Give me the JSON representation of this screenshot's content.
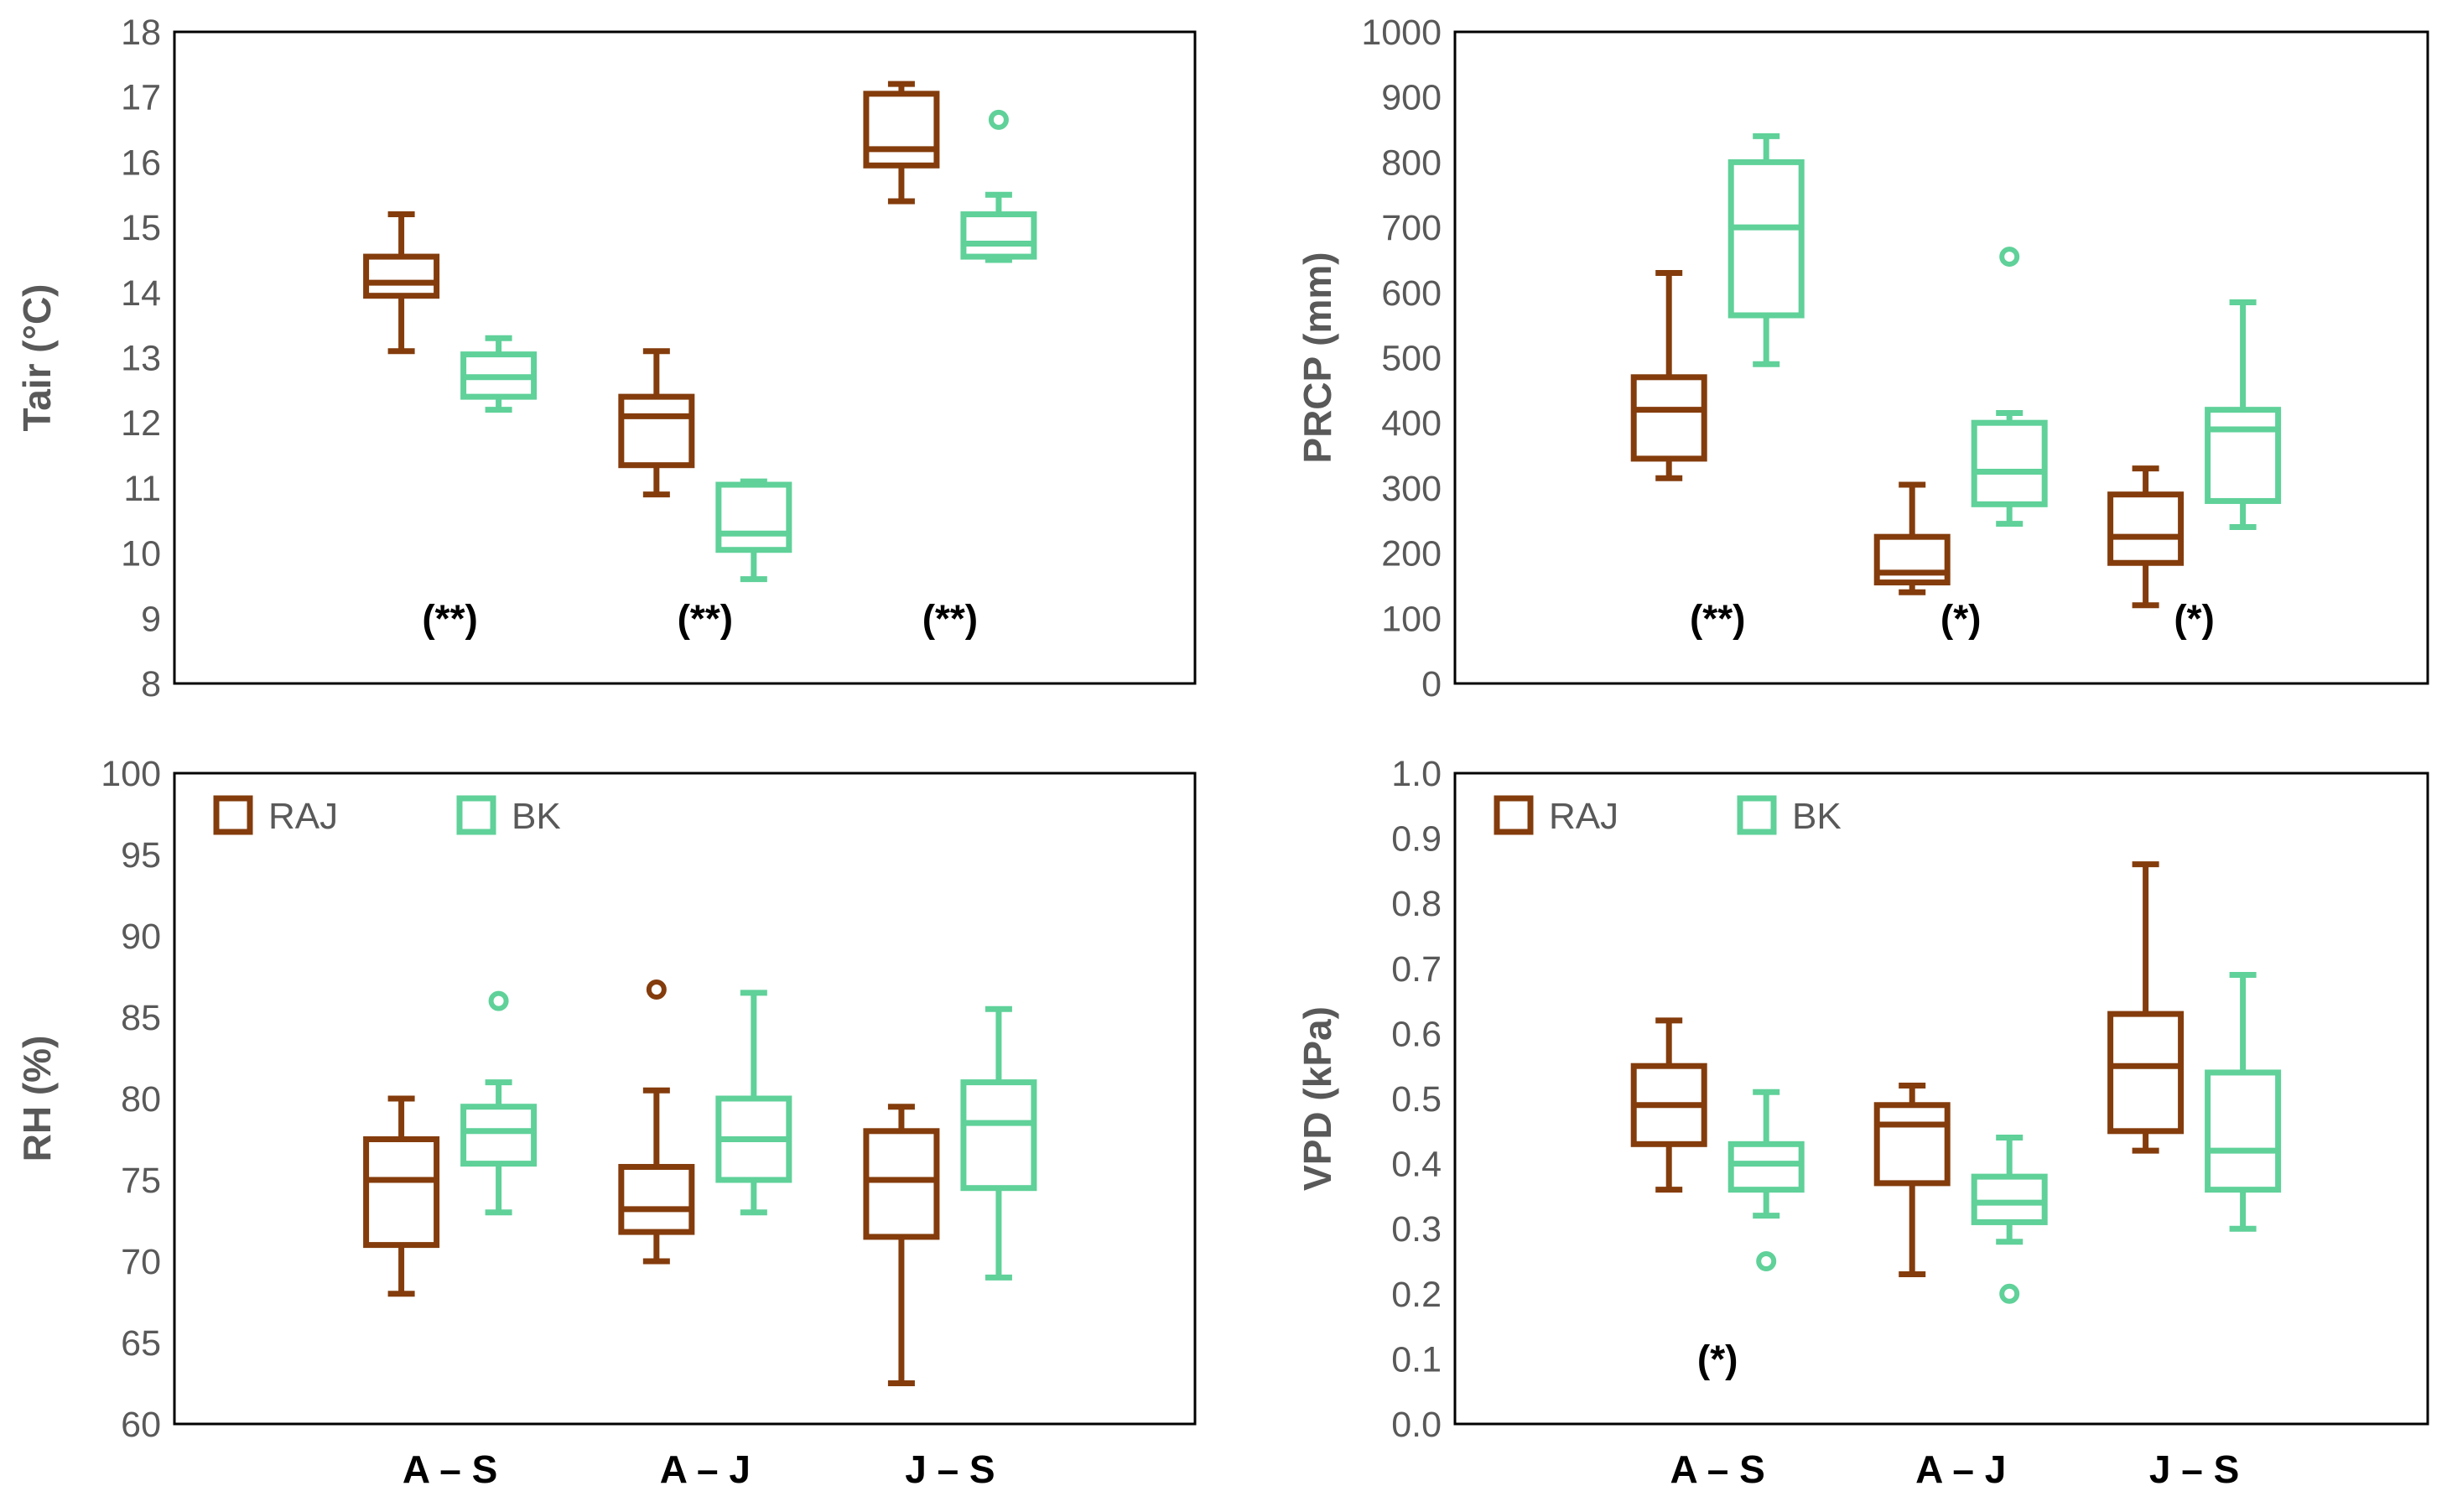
{
  "colors": {
    "RAJ": "#843c0c",
    "BK": "#5fd199",
    "axis": "#000000",
    "text": "#595959"
  },
  "x_categories": [
    "A – S",
    "A – J",
    "J – S"
  ],
  "legend": [
    "RAJ",
    "BK"
  ],
  "chart_data": [
    {
      "type": "boxplot",
      "id": "tair",
      "ylabel": "Tair (°C)",
      "ylim": [
        8,
        18
      ],
      "ytick_step": 1,
      "ytick_decimals": 0,
      "categories": [
        "A – S",
        "A – J",
        "J – S"
      ],
      "show_x_labels": false,
      "legend": false,
      "significance": [
        "(**)",
        "(**)",
        "(**)"
      ],
      "significance_at": 9.0,
      "series": [
        {
          "name": "RAJ",
          "boxes": [
            {
              "min": 13.1,
              "q1": 13.95,
              "median": 14.15,
              "q3": 14.55,
              "max": 15.2,
              "outliers": []
            },
            {
              "min": 10.9,
              "q1": 11.35,
              "median": 12.1,
              "q3": 12.4,
              "max": 13.1,
              "outliers": []
            },
            {
              "min": 15.4,
              "q1": 15.95,
              "median": 16.2,
              "q3": 17.05,
              "max": 17.2,
              "outliers": []
            }
          ]
        },
        {
          "name": "BK",
          "boxes": [
            {
              "min": 12.2,
              "q1": 12.4,
              "median": 12.7,
              "q3": 13.05,
              "max": 13.3,
              "outliers": []
            },
            {
              "min": 9.6,
              "q1": 10.05,
              "median": 10.3,
              "q3": 11.05,
              "max": 11.1,
              "outliers": []
            },
            {
              "min": 14.5,
              "q1": 14.55,
              "median": 14.75,
              "q3": 15.2,
              "max": 15.5,
              "outliers": [
                16.65
              ]
            }
          ]
        }
      ]
    },
    {
      "type": "boxplot",
      "id": "prcp",
      "ylabel": "PRCP (mm)",
      "ylim": [
        0,
        1000
      ],
      "ytick_step": 100,
      "ytick_decimals": 0,
      "categories": [
        "A – S",
        "A – J",
        "J – S"
      ],
      "show_x_labels": false,
      "legend": false,
      "significance": [
        "(**)",
        "(*)",
        "(*)"
      ],
      "significance_at": 100,
      "series": [
        {
          "name": "RAJ",
          "boxes": [
            {
              "min": 315,
              "q1": 345,
              "median": 420,
              "q3": 470,
              "max": 630,
              "outliers": []
            },
            {
              "min": 140,
              "q1": 155,
              "median": 170,
              "q3": 225,
              "max": 305,
              "outliers": []
            },
            {
              "min": 120,
              "q1": 185,
              "median": 225,
              "q3": 290,
              "max": 330,
              "outliers": []
            }
          ]
        },
        {
          "name": "BK",
          "boxes": [
            {
              "min": 490,
              "q1": 565,
              "median": 700,
              "q3": 800,
              "max": 840,
              "outliers": []
            },
            {
              "min": 245,
              "q1": 275,
              "median": 325,
              "q3": 400,
              "max": 415,
              "outliers": [
                655
              ]
            },
            {
              "min": 240,
              "q1": 280,
              "median": 390,
              "q3": 420,
              "max": 585,
              "outliers": []
            }
          ]
        }
      ]
    },
    {
      "type": "boxplot",
      "id": "rh",
      "ylabel": "RH (%)",
      "ylim": [
        60,
        100
      ],
      "ytick_step": 5,
      "ytick_decimals": 0,
      "categories": [
        "A – S",
        "A – J",
        "J – S"
      ],
      "show_x_labels": true,
      "legend": true,
      "significance": [
        "",
        "",
        ""
      ],
      "significance_at": 62,
      "series": [
        {
          "name": "RAJ",
          "boxes": [
            {
              "min": 68,
              "q1": 71,
              "median": 75,
              "q3": 77.5,
              "max": 80,
              "outliers": []
            },
            {
              "min": 70,
              "q1": 71.8,
              "median": 73.2,
              "q3": 75.8,
              "max": 80.5,
              "outliers": [
                86.7
              ]
            },
            {
              "min": 62.5,
              "q1": 71.5,
              "median": 75,
              "q3": 78,
              "max": 79.5,
              "outliers": []
            }
          ]
        },
        {
          "name": "BK",
          "boxes": [
            {
              "min": 73,
              "q1": 76,
              "median": 78,
              "q3": 79.5,
              "max": 81,
              "outliers": [
                86
              ]
            },
            {
              "min": 73,
              "q1": 75,
              "median": 77.5,
              "q3": 80,
              "max": 86.5,
              "outliers": []
            },
            {
              "min": 69,
              "q1": 74.5,
              "median": 78.5,
              "q3": 81,
              "max": 85.5,
              "outliers": []
            }
          ]
        }
      ]
    },
    {
      "type": "boxplot",
      "id": "vpd",
      "ylabel": "VPD (kPa)",
      "ylim": [
        0,
        1.0
      ],
      "ytick_step": 0.1,
      "ytick_decimals": 1,
      "categories": [
        "A – S",
        "A – J",
        "J – S"
      ],
      "show_x_labels": true,
      "legend": true,
      "significance": [
        "(*)",
        "",
        ""
      ],
      "significance_at": 0.1,
      "series": [
        {
          "name": "RAJ",
          "boxes": [
            {
              "min": 0.36,
              "q1": 0.43,
              "median": 0.49,
              "q3": 0.55,
              "max": 0.62,
              "outliers": []
            },
            {
              "min": 0.23,
              "q1": 0.37,
              "median": 0.46,
              "q3": 0.49,
              "max": 0.52,
              "outliers": []
            },
            {
              "min": 0.42,
              "q1": 0.45,
              "median": 0.55,
              "q3": 0.63,
              "max": 0.86,
              "outliers": []
            }
          ]
        },
        {
          "name": "BK",
          "boxes": [
            {
              "min": 0.32,
              "q1": 0.36,
              "median": 0.4,
              "q3": 0.43,
              "max": 0.51,
              "outliers": [
                0.25
              ]
            },
            {
              "min": 0.28,
              "q1": 0.31,
              "median": 0.34,
              "q3": 0.38,
              "max": 0.44,
              "outliers": [
                0.2
              ]
            },
            {
              "min": 0.3,
              "q1": 0.36,
              "median": 0.42,
              "q3": 0.54,
              "max": 0.69,
              "outliers": []
            }
          ]
        }
      ]
    }
  ]
}
